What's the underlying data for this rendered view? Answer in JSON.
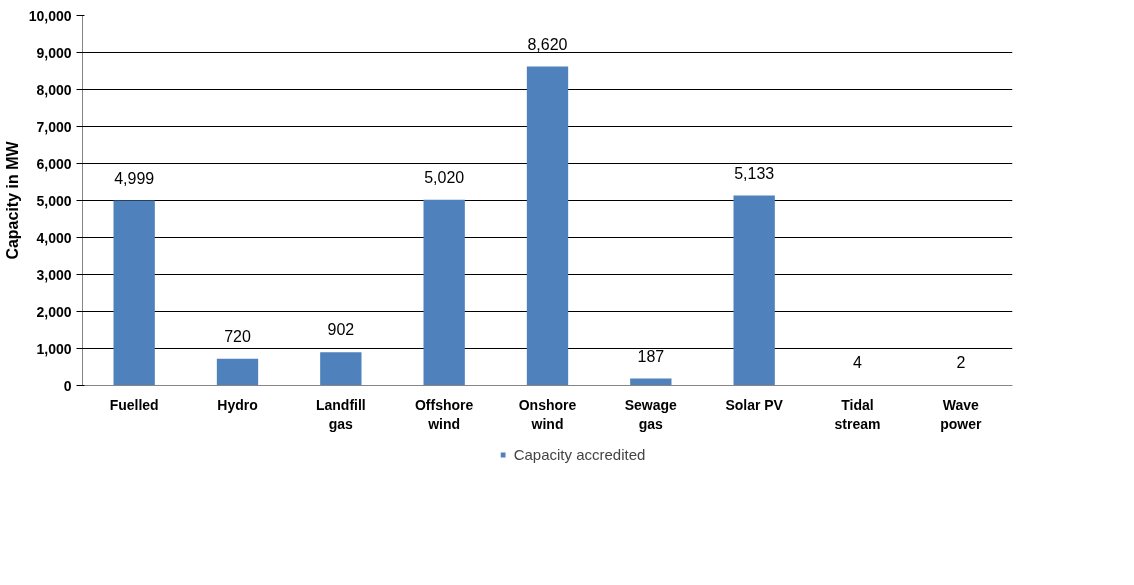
{
  "chart_data": {
    "type": "bar",
    "ylabel": "Capacity in MW",
    "categories": [
      "Fuelled",
      "Hydro",
      "Landfill gas",
      "Offshore wind",
      "Onshore wind",
      "Sewage gas",
      "Solar PV",
      "Tidal stream",
      "Wave power"
    ],
    "series": [
      {
        "name": "Capacity accredited",
        "color": "#4f81bd",
        "values": [
          4999,
          720,
          902,
          5020,
          8620,
          187,
          5133,
          4,
          2
        ],
        "value_labels": [
          "4,999",
          "720",
          "902",
          "5,020",
          "8,620",
          "187",
          "5,133",
          "4",
          "2"
        ]
      }
    ],
    "ylim": [
      0,
      10000
    ],
    "yticks": [
      0,
      {
        "value": 1000,
        "label": "1,000"
      },
      {
        "value": 2000,
        "label": "2,000"
      },
      {
        "value": 3000,
        "label": "3,000"
      },
      {
        "value": 4000,
        "label": "4,000"
      },
      {
        "value": 5000,
        "label": "5,000"
      },
      {
        "value": 6000,
        "label": "6,000"
      },
      {
        "value": 7000,
        "label": "7,000"
      },
      {
        "value": 8000,
        "label": "8,000"
      },
      {
        "value": 9000,
        "label": "9,000"
      },
      {
        "value": 10000,
        "label": "10,000"
      }
    ],
    "grid": "y",
    "legend": "bottom"
  }
}
